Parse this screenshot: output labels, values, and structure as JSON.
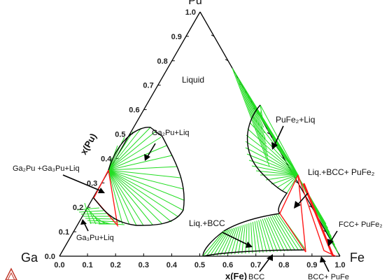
{
  "apex_top_label": "Pu",
  "element_labels": {
    "left": "Ga",
    "right": "Fe"
  },
  "axis_titles": {
    "left": "x(Pu)",
    "bottom": "x(Fe)"
  },
  "left_axis_ticks": [
    "0.0",
    "0.1",
    "0.2",
    "0.3",
    "0.4",
    "0.5",
    "0.6",
    "0.7",
    "0.8",
    "0.9",
    "1.0"
  ],
  "bottom_axis_ticks": [
    "0.0",
    "0.1",
    "0.2",
    "0.3",
    "0.4",
    "0.5",
    "0.6",
    "0.7",
    "0.8",
    "0.9",
    "1.0"
  ],
  "regions": {
    "liquid": "Liquid",
    "ga2pu_liq": "Ga₂Pu+Liq",
    "ga2pu_ga3pu_liq": "Ga₂Pu +Ga₃Pu+Liq",
    "ga3pu_liq": "Ga₃Pu+Liq",
    "pufe2_liq": "PuFe₂+Liq",
    "liq_bcc_pufe2": "Liq.+BCC+ PuFe₂",
    "liq_bcc": "Liq.+BCC",
    "fcc_pufe2": "FCC+ PuFe₂",
    "bcc": "BCC",
    "bcc_pufe": "BCC+ PuFe"
  },
  "colors": {
    "tie_lines": "#22dd22",
    "three_phase": "#ff1a1a",
    "boundary": "#000000"
  }
}
